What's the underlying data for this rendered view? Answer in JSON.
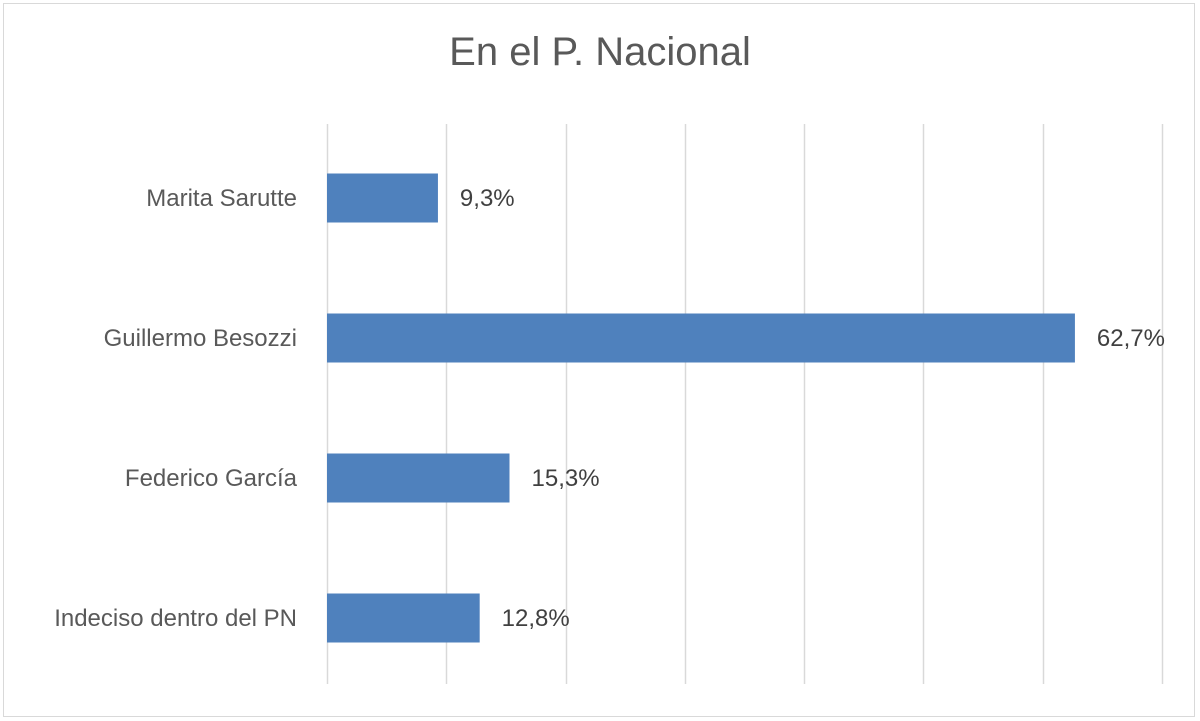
{
  "chart_data": {
    "type": "bar",
    "orientation": "horizontal",
    "title": "En el P. Nacional",
    "categories": [
      "Marita Sarutte",
      "Guillermo Besozzi",
      "Federico García",
      "Indeciso dentro del PN"
    ],
    "values": [
      9.3,
      62.7,
      15.3,
      12.8
    ],
    "value_labels": [
      "9,3%",
      "62,7%",
      "15,3%",
      "12,8%"
    ],
    "xlim": [
      0,
      70
    ],
    "grid": true,
    "legend": "none",
    "bar_color": "#4f81bd"
  }
}
